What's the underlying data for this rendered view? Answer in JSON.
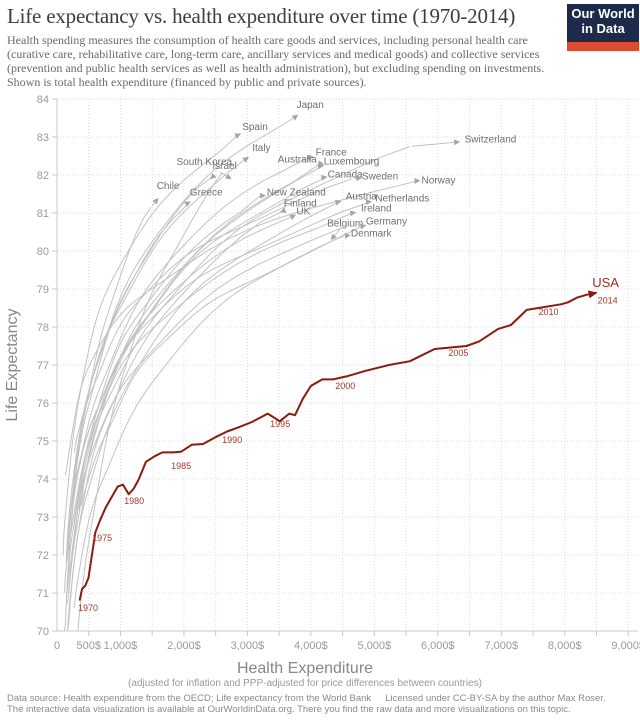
{
  "header": {
    "title": "Life expectancy vs. health expenditure over time (1970-2014)",
    "subtitle": "Health spending measures the consumption of health care goods and services, including personal health care (curative care, rehabilitative care, long-term care, ancillary services and medical goods) and collective services (prevention and public health services as well as health administration), but excluding spending on investments. Shown is total health expenditure (financed by public and private sources).",
    "logo": {
      "line1": "Our World",
      "line2": "in Data"
    }
  },
  "footer": {
    "line1_left": "Data source: Health expenditure from the OECD; Life expectancy from the World Bank",
    "line1_right": "Licensed under CC-BY-SA by the author Max Roser.",
    "line2_pre": "The interactive data visualization is available at ",
    "line2_link": "OurWorldinData.org",
    "line2_post": ". There you find the raw data and more visualizations on this topic."
  },
  "colors": {
    "usa_line": "#8b1a0f",
    "usa_label": "#9d2d22",
    "year_label": "#a33a2c",
    "country_line": "#c2c2c2",
    "country_label": "#6f6f6f",
    "leader": "#b5b5b5",
    "leader_arrow": "#a5a5a5",
    "grid": "#dcdcdc",
    "axis": "#c9c9c9",
    "tick_text": "#9a9a9a",
    "logo_navy": "#1c2b4a",
    "logo_red": "#dc4b32"
  },
  "chart_data": {
    "type": "line",
    "xlabel": "Health Expenditure",
    "xlabel_note": "(adjusted for inflation and PPP-adjusted for price differences between countries)",
    "ylabel": "Life Expectancy",
    "xlim": [
      0,
      9150
    ],
    "ylim": [
      70,
      84
    ],
    "grid": true,
    "x_ticks": [
      {
        "v": 0,
        "label": "0"
      },
      {
        "v": 500,
        "label": "500$"
      },
      {
        "v": 1000,
        "label": "1,000$"
      },
      {
        "v": 2000,
        "label": "2,000$"
      },
      {
        "v": 3000,
        "label": "3,000$"
      },
      {
        "v": 4000,
        "label": "4,000$"
      },
      {
        "v": 5000,
        "label": "5,000$"
      },
      {
        "v": 6000,
        "label": "6,000$"
      },
      {
        "v": 7000,
        "label": "7,000$"
      },
      {
        "v": 8000,
        "label": "8,000$"
      },
      {
        "v": 9000,
        "label": "9,000$"
      }
    ],
    "y_ticks": [
      70,
      71,
      72,
      73,
      74,
      75,
      76,
      77,
      78,
      79,
      80,
      81,
      82,
      83,
      84
    ],
    "highlight": {
      "name": "USA",
      "label_at": [
        8644,
        79.16
      ],
      "path": [
        [
          356,
          70.8
        ],
        [
          394,
          71.1
        ],
        [
          447,
          71.2
        ],
        [
          496,
          71.4
        ],
        [
          550,
          72.0
        ],
        [
          605,
          72.6
        ],
        [
          674,
          72.9
        ],
        [
          768,
          73.25
        ],
        [
          852,
          73.5
        ],
        [
          956,
          73.8
        ],
        [
          1040,
          73.85
        ],
        [
          1130,
          73.6
        ],
        [
          1210,
          73.75
        ],
        [
          1290,
          74.0
        ],
        [
          1400,
          74.45
        ],
        [
          1540,
          74.6
        ],
        [
          1660,
          74.7
        ],
        [
          1830,
          74.7
        ],
        [
          1960,
          74.72
        ],
        [
          2120,
          74.9
        ],
        [
          2300,
          74.92
        ],
        [
          2495,
          75.1
        ],
        [
          2680,
          75.25
        ],
        [
          2845,
          75.35
        ],
        [
          3070,
          75.5
        ],
        [
          3320,
          75.72
        ],
        [
          3510,
          75.52
        ],
        [
          3660,
          75.72
        ],
        [
          3750,
          75.68
        ],
        [
          3870,
          76.1
        ],
        [
          4000,
          76.45
        ],
        [
          4180,
          76.62
        ],
        [
          4350,
          76.62
        ],
        [
          4560,
          76.7
        ],
        [
          4870,
          76.85
        ],
        [
          5230,
          77.0
        ],
        [
          5560,
          77.1
        ],
        [
          5950,
          77.42
        ],
        [
          6450,
          77.5
        ],
        [
          6650,
          77.62
        ],
        [
          6950,
          77.95
        ],
        [
          7150,
          78.05
        ],
        [
          7400,
          78.45
        ],
        [
          7950,
          78.6
        ],
        [
          8050,
          78.65
        ],
        [
          8200,
          78.78
        ],
        [
          8350,
          78.85
        ],
        [
          8500,
          78.9
        ]
      ],
      "milestones": [
        {
          "year": "1970",
          "at": [
            489,
            70.6
          ]
        },
        {
          "year": "1975",
          "at": [
            710,
            72.45
          ]
        },
        {
          "year": "1980",
          "at": [
            1215,
            73.42
          ]
        },
        {
          "year": "1985",
          "at": [
            1956,
            74.34
          ]
        },
        {
          "year": "1990",
          "at": [
            2760,
            75.03
          ]
        },
        {
          "year": "1995",
          "at": [
            3517,
            75.45
          ]
        },
        {
          "year": "2000",
          "at": [
            4542,
            76.45
          ]
        },
        {
          "year": "2005",
          "at": [
            6325,
            77.32
          ]
        },
        {
          "year": "2010",
          "at": [
            7744,
            78.39
          ]
        },
        {
          "year": "2014",
          "at": [
            8675,
            78.7
          ]
        }
      ]
    },
    "countries": [
      {
        "name": "Japan",
        "start": [
          149,
          72.0
        ],
        "end": [
          3730,
          83.5
        ],
        "label_at": [
          3990,
          83.85
        ]
      },
      {
        "name": "Spain",
        "start": [
          96,
          72.0
        ],
        "end": [
          2850,
          83.05
        ],
        "label_at": [
          3120,
          83.27
        ]
      },
      {
        "name": "Italy",
        "start": [
          155,
          72.1
        ],
        "end": [
          3000,
          82.45
        ],
        "label_at": [
          3220,
          82.72
        ]
      },
      {
        "name": "Switzerland",
        "start": [
          346,
          73.2
        ],
        "end": [
          5560,
          82.75
        ],
        "label_at": [
          6830,
          82.95
        ]
      },
      {
        "name": "South Korea",
        "start": [
          330,
          70.0
        ],
        "end": [
          2600,
          82.05
        ],
        "label_at": [
          2320,
          82.35
        ]
      },
      {
        "name": "Israel",
        "start": [
          150,
          71.8
        ],
        "end": [
          2450,
          81.95
        ],
        "label_at": [
          2640,
          82.25
        ]
      },
      {
        "name": "France",
        "start": [
          192,
          72.2
        ],
        "end": [
          3950,
          82.45
        ],
        "label_at": [
          4320,
          82.6
        ]
      },
      {
        "name": "Australia",
        "start": [
          188,
          71.0
        ],
        "end": [
          4150,
          82.3
        ],
        "label_at": [
          3785,
          82.42
        ]
      },
      {
        "name": "Luxembourg",
        "start": [
          163,
          70.7
        ],
        "end": [
          4200,
          82.25
        ],
        "label_at": [
          4640,
          82.37
        ]
      },
      {
        "name": "Canada",
        "start": [
          260,
          72.7
        ],
        "end": [
          4250,
          81.95
        ],
        "label_at": [
          4540,
          82.03
        ]
      },
      {
        "name": "Sweden",
        "start": [
          274,
          74.7
        ],
        "end": [
          4650,
          81.9
        ],
        "label_at": [
          5090,
          81.97
        ]
      },
      {
        "name": "Chile",
        "start": [
          120,
          70.0
        ],
        "end": [
          1480,
          81.15
        ],
        "label_at": [
          1750,
          81.72
        ]
      },
      {
        "name": "Greece",
        "start": [
          160,
          71.9
        ],
        "end": [
          2100,
          81.3
        ],
        "label_at": [
          2350,
          81.55
        ]
      },
      {
        "name": "New Zealand",
        "start": [
          180,
          71.5
        ],
        "end": [
          3200,
          81.45
        ],
        "label_at": [
          3770,
          81.55
        ]
      },
      {
        "name": "Norway",
        "start": [
          131,
          74.1
        ],
        "end": [
          5700,
          81.85
        ],
        "label_at": [
          6010,
          81.87
        ]
      },
      {
        "name": "Austria",
        "start": [
          165,
          70.0
        ],
        "end": [
          4450,
          81.3
        ],
        "label_at": [
          4795,
          81.45
        ]
      },
      {
        "name": "Netherlands",
        "start": [
          254,
          73.6
        ],
        "end": [
          4950,
          81.3
        ],
        "label_at": [
          5440,
          81.4
        ]
      },
      {
        "name": "Finland",
        "start": [
          163,
          70.0
        ],
        "end": [
          3560,
          81.05
        ],
        "label_at": [
          3833,
          81.26
        ]
      },
      {
        "name": "UK",
        "start": [
          144,
          71.8
        ],
        "end": [
          3700,
          80.9
        ],
        "label_at": [
          3880,
          81.05
        ]
      },
      {
        "name": "Ireland",
        "start": [
          117,
          71.0
        ],
        "end": [
          4650,
          81.0
        ],
        "label_at": [
          5030,
          81.13
        ]
      },
      {
        "name": "Belgium",
        "start": [
          148,
          70.9
        ],
        "end": [
          4470,
          80.6
        ],
        "label_at": [
          4540,
          80.74
        ]
      },
      {
        "name": "Germany",
        "start": [
          270,
          70.6
        ],
        "end": [
          4800,
          80.65
        ],
        "label_at": [
          5190,
          80.79
        ]
      },
      {
        "name": "Denmark",
        "start": [
          384,
          73.3
        ],
        "end": [
          4520,
          80.4
        ],
        "label_at": [
          4950,
          80.47
        ]
      }
    ]
  }
}
